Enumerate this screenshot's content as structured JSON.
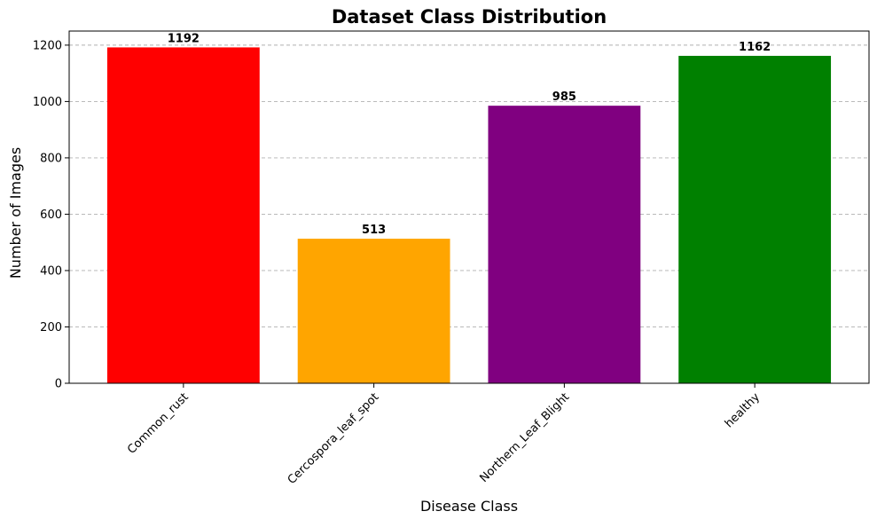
{
  "chart_data": {
    "type": "bar",
    "title": "Dataset Class Distribution",
    "xlabel": "Disease Class",
    "ylabel": "Number of Images",
    "categories": [
      "Common_rust",
      "Cercospora_leaf_spot",
      "Northern_Leaf_Blight",
      "healthy"
    ],
    "values": [
      1192,
      513,
      985,
      1162
    ],
    "data_labels": [
      "1192",
      "513",
      "985",
      "1162"
    ],
    "colors": [
      "#ff0000",
      "#ffa500",
      "#800080",
      "#008000"
    ],
    "ylim": [
      0,
      1250
    ],
    "yticks": [
      0,
      200,
      400,
      600,
      800,
      1000,
      1200
    ],
    "ytick_labels": [
      "0",
      "200",
      "400",
      "600",
      "800",
      "1000",
      "1200"
    ],
    "grid": "y-dashed",
    "xtick_rotation": 45
  }
}
